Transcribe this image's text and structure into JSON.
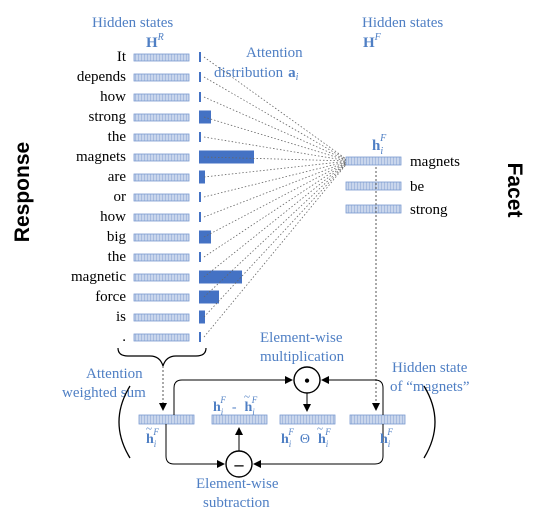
{
  "labels": {
    "hidden_states_left": "Hidden states",
    "matrix_left": "H",
    "matrix_left_sup": "R",
    "hidden_states_right": "Hidden states",
    "matrix_right": "H",
    "matrix_right_sup": "F",
    "attention_line1": "Attention",
    "attention_line2": "distribution",
    "attention_symbol": "a",
    "attention_symbol_sub": "i",
    "response": "Response",
    "facet": "Facet",
    "hi_main": "h",
    "hi_sub": "i",
    "hi_sup": "F",
    "weighted_sum_line1": "Attention",
    "weighted_sum_line2": "weighted sum",
    "mult_line1": "Element-wise",
    "mult_line2": "multiplication",
    "hidden_state_of_line1": "Hidden state",
    "hidden_state_of_line2": "of “magnets”",
    "sub_line1": "Element-wise",
    "sub_line2": "subtraction",
    "op_dot": "•",
    "op_minus": "–",
    "diff_minus": "-",
    "prod_op": "Θ"
  },
  "response_tokens": [
    {
      "word": "It",
      "weight": 0.01
    },
    {
      "word": "depends",
      "weight": 0.02
    },
    {
      "word": "how",
      "weight": 0.01
    },
    {
      "word": "strong",
      "weight": 0.12
    },
    {
      "word": "the",
      "weight": 0.01
    },
    {
      "word": "magnets",
      "weight": 0.55
    },
    {
      "word": "are",
      "weight": 0.06
    },
    {
      "word": "or",
      "weight": 0.02
    },
    {
      "word": "how",
      "weight": 0.02
    },
    {
      "word": "big",
      "weight": 0.12
    },
    {
      "word": "the",
      "weight": 0.01
    },
    {
      "word": "magnetic",
      "weight": 0.43
    },
    {
      "word": "force",
      "weight": 0.2
    },
    {
      "word": "is",
      "weight": 0.06
    },
    {
      "word": ".",
      "weight": 0.01
    }
  ],
  "facet_tokens": [
    "magnets",
    "be",
    "strong"
  ],
  "colors": {
    "blue": "#4f7fc4",
    "cell_fill": "#c9d6ec",
    "cell_stroke": "#7a9ad0"
  }
}
